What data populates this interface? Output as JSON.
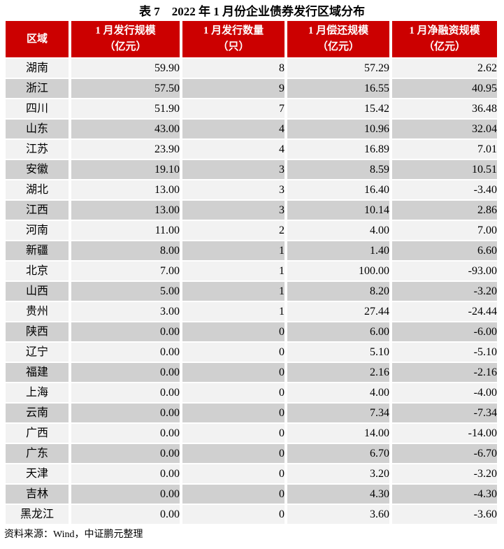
{
  "title": "表 7　2022 年 1 月份企业债券发行区域分布",
  "source_note": "资料来源：Wind，中证鹏元整理",
  "colors": {
    "header_bg": "#CC0000",
    "header_text": "#FFFFFF",
    "row_light": "#F2F2F2",
    "row_dark": "#D0D0D0",
    "body_text": "#000000",
    "page_bg": "#FFFFFF"
  },
  "table": {
    "columns": [
      {
        "label": "区域",
        "unit": "",
        "width": 90
      },
      {
        "label": "1 月发行规模",
        "unit": "（亿元）",
        "width": 155
      },
      {
        "label": "1 月发行数量",
        "unit": "（只）",
        "width": 146
      },
      {
        "label": "1 月偿还规模",
        "unit": "（亿元）",
        "width": 146
      },
      {
        "label": "1 月净融资规模",
        "unit": "（亿元）",
        "width": 150
      }
    ],
    "rows": [
      [
        "湖南",
        "59.90",
        "8",
        "57.29",
        "2.62"
      ],
      [
        "浙江",
        "57.50",
        "9",
        "16.55",
        "40.95"
      ],
      [
        "四川",
        "51.90",
        "7",
        "15.42",
        "36.48"
      ],
      [
        "山东",
        "43.00",
        "4",
        "10.96",
        "32.04"
      ],
      [
        "江苏",
        "23.90",
        "4",
        "16.89",
        "7.01"
      ],
      [
        "安徽",
        "19.10",
        "3",
        "8.59",
        "10.51"
      ],
      [
        "湖北",
        "13.00",
        "3",
        "16.40",
        "-3.40"
      ],
      [
        "江西",
        "13.00",
        "3",
        "10.14",
        "2.86"
      ],
      [
        "河南",
        "11.00",
        "2",
        "4.00",
        "7.00"
      ],
      [
        "新疆",
        "8.00",
        "1",
        "1.40",
        "6.60"
      ],
      [
        "北京",
        "7.00",
        "1",
        "100.00",
        "-93.00"
      ],
      [
        "山西",
        "5.00",
        "1",
        "8.20",
        "-3.20"
      ],
      [
        "贵州",
        "3.00",
        "1",
        "27.44",
        "-24.44"
      ],
      [
        "陕西",
        "0.00",
        "0",
        "6.00",
        "-6.00"
      ],
      [
        "辽宁",
        "0.00",
        "0",
        "5.10",
        "-5.10"
      ],
      [
        "福建",
        "0.00",
        "0",
        "2.16",
        "-2.16"
      ],
      [
        "上海",
        "0.00",
        "0",
        "4.00",
        "-4.00"
      ],
      [
        "云南",
        "0.00",
        "0",
        "7.34",
        "-7.34"
      ],
      [
        "广西",
        "0.00",
        "0",
        "14.00",
        "-14.00"
      ],
      [
        "广东",
        "0.00",
        "0",
        "6.70",
        "-6.70"
      ],
      [
        "天津",
        "0.00",
        "0",
        "3.20",
        "-3.20"
      ],
      [
        "吉林",
        "0.00",
        "0",
        "4.30",
        "-4.30"
      ],
      [
        "黑龙江",
        "0.00",
        "0",
        "3.60",
        "-3.60"
      ]
    ]
  }
}
